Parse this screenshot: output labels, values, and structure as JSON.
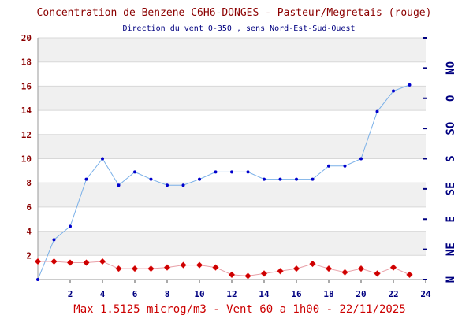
{
  "chart_data": {
    "type": "line",
    "title": "Concentration de Benzene C6H6-DONGES - Pasteur/Megretais (rouge)",
    "subtitle": "Direction du vent 0-350 , sens Nord-Est-Sud-Ouest",
    "footer": "Max 1.5125 microg/m3 - Vent 60  a 1h00 - 22/11/2025",
    "xlim": [
      0,
      24
    ],
    "ylim": [
      0,
      20
    ],
    "x_ticks": [
      2,
      4,
      6,
      8,
      10,
      12,
      14,
      16,
      18,
      20,
      22,
      24
    ],
    "y_ticks": [
      2,
      4,
      6,
      8,
      10,
      12,
      14,
      16,
      18,
      20
    ],
    "right_axis_labels": [
      "N",
      "NE",
      "E",
      "SE",
      "S",
      "SO",
      "O",
      "NO"
    ],
    "grid": true,
    "series": [
      {
        "color": "#cc0000",
        "marker": "diamond",
        "x": [
          0,
          1,
          2,
          3,
          4,
          5,
          6,
          7,
          8,
          9,
          10,
          11,
          12,
          13,
          14,
          15,
          16,
          17,
          18,
          19,
          20,
          21,
          22,
          23
        ],
        "values": [
          1.5,
          1.5,
          1.4,
          1.4,
          1.5,
          0.9,
          0.9,
          0.9,
          1.0,
          1.2,
          1.2,
          1.0,
          0.4,
          0.3,
          0.5,
          0.7,
          0.9,
          1.3,
          0.9,
          0.6,
          0.9,
          0.5,
          1.0,
          0.4
        ]
      },
      {
        "color": "#0000cc",
        "marker": "dot",
        "axis": "right",
        "x": [
          0,
          1,
          2,
          3,
          4,
          5,
          6,
          7,
          8,
          9,
          10,
          11,
          12,
          13,
          14,
          15,
          16,
          17,
          18,
          19,
          20,
          21,
          22,
          23
        ],
        "values": [
          0.0,
          3.3,
          4.4,
          8.3,
          10.0,
          7.8,
          8.9,
          8.3,
          7.8,
          7.8,
          8.3,
          8.9,
          8.9,
          8.9,
          8.3,
          8.3,
          8.3,
          8.3,
          9.4,
          9.4,
          10.0,
          13.9,
          15.6,
          16.1
        ]
      }
    ]
  }
}
